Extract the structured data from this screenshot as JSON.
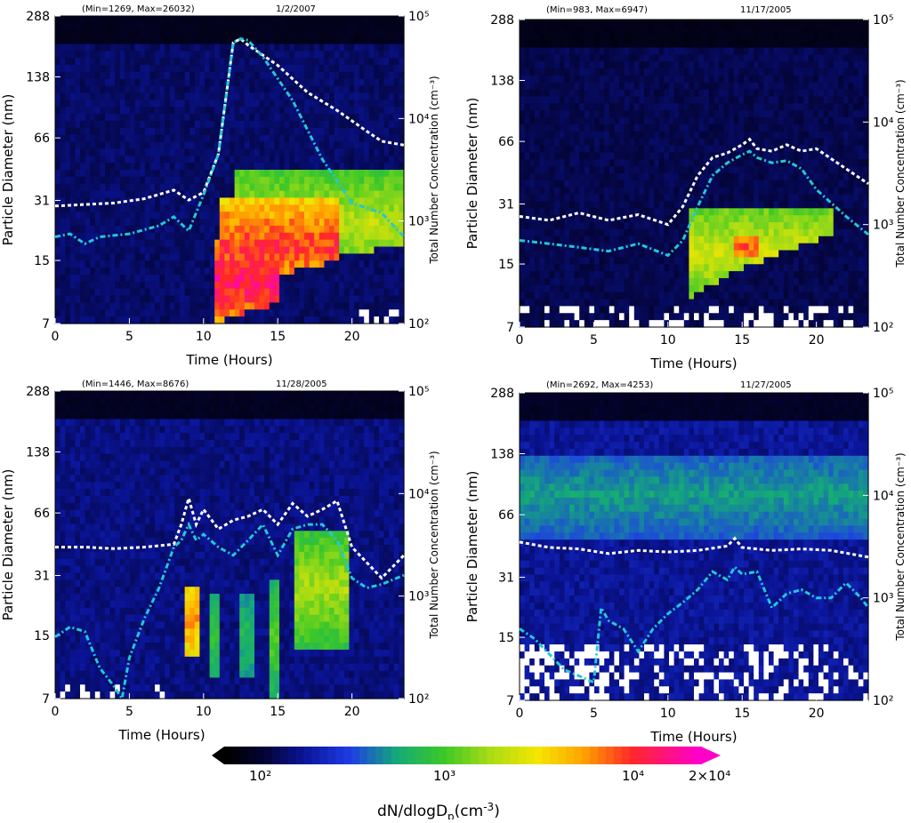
{
  "figure": {
    "colorbar": {
      "ticks": [
        "10²",
        "10³",
        "10⁴",
        "2×10⁴"
      ],
      "label_main": "dN/dlogD",
      "label_sub": "p",
      "label_units": "(cm",
      "label_units_sup": "-3",
      "label_units_close": ")"
    }
  },
  "chart_data": [
    {
      "type": "heatmap",
      "header_stats": "(Min=1269, Max=26032)",
      "date": "1/2/2007",
      "xlabel": "Time (Hours)",
      "ylabel": "Particle Diameter (nm)",
      "ylabel_right": "Total Number Concentration (cm⁻³)",
      "x_ticks": [
        "0",
        "5",
        "10",
        "15",
        "20"
      ],
      "y_ticks": [
        "7",
        "15",
        "31",
        "66",
        "138",
        "288"
      ],
      "y2_ticks": [
        "10²",
        "10³",
        "10⁴",
        "10⁵"
      ],
      "xlim": [
        0,
        23.5
      ],
      "ylim_nm": [
        7,
        288
      ],
      "y2lim": [
        100,
        100000
      ],
      "background_level": 0.12,
      "blobs": [
        {
          "t0": 10.6,
          "t1": 15.2,
          "d0": 7,
          "d1": 20,
          "dt": 5.5,
          "level": 0.95
        },
        {
          "t0": 11.2,
          "t1": 19.2,
          "d0": 10,
          "d1": 32,
          "dt": 5.5,
          "level": 0.88
        },
        {
          "t0": 12,
          "t1": 23.5,
          "d0": 12,
          "d1": 45,
          "dt": 8,
          "level": 0.6
        }
      ],
      "white_noise": {
        "t0": 19.5,
        "t1": 23.5,
        "dmax": 8.3
      },
      "total_concentration_white": {
        "x": [
          0,
          2,
          4,
          6,
          8,
          9,
          10,
          11,
          12,
          12.5,
          13,
          15,
          17,
          19,
          21,
          22,
          23.5
        ],
        "y": [
          1400,
          1450,
          1500,
          1650,
          2000,
          1600,
          1900,
          4500,
          55000,
          60000,
          52000,
          33000,
          18000,
          12000,
          7500,
          6000,
          5500
        ]
      },
      "total_concentration_cyan": {
        "x": [
          0,
          1,
          2,
          3,
          5,
          7,
          8,
          9,
          10,
          11,
          12,
          12.5,
          13,
          14,
          16,
          18,
          20,
          22,
          23.5
        ],
        "y": [
          700,
          750,
          600,
          700,
          750,
          900,
          1100,
          800,
          1800,
          4500,
          55000,
          60000,
          58000,
          40000,
          15000,
          4000,
          1500,
          1200,
          700
        ]
      }
    },
    {
      "type": "heatmap",
      "header_stats": "(Min=983, Max=6947)",
      "date": "11/17/2005",
      "xlabel": "Time (Hours)",
      "ylabel": "Particle Diameter (nm)",
      "ylabel_right": "Total Number Concentration (cm⁻³)",
      "x_ticks": [
        "0",
        "5",
        "10",
        "15",
        "20"
      ],
      "y_ticks": [
        "7",
        "15",
        "31",
        "66",
        "138",
        "288"
      ],
      "y2_ticks": [
        "10²",
        "10³",
        "10⁴",
        "10⁵"
      ],
      "xlim": [
        0,
        23.5
      ],
      "ylim_nm": [
        7,
        288
      ],
      "y2lim": [
        100,
        100000
      ],
      "background_level": 0.1,
      "blobs": [
        {
          "t0": 11.5,
          "t1": 21,
          "d0": 10,
          "d1": 30,
          "dt": 3,
          "level": 0.62
        },
        {
          "t0": 14.5,
          "t1": 16,
          "d0": 16,
          "d1": 21,
          "dt": 0,
          "level": 0.85
        }
      ],
      "white_noise": {
        "t0": 0,
        "t1": 23.5,
        "dmax": 8.8
      },
      "total_concentration_white": {
        "x": [
          0,
          2,
          4,
          6,
          8,
          10,
          11,
          12,
          13,
          14,
          15,
          15.5,
          16,
          17,
          18,
          19,
          20,
          22,
          23.5
        ],
        "y": [
          1200,
          1100,
          1300,
          1100,
          1250,
          1000,
          1500,
          3000,
          4500,
          5000,
          6000,
          6800,
          5500,
          5200,
          6000,
          5200,
          5500,
          3500,
          2500
        ]
      },
      "total_concentration_cyan": {
        "x": [
          0,
          2,
          4,
          6,
          8,
          10,
          11,
          12,
          13,
          14,
          15,
          15.5,
          16,
          17,
          18,
          19,
          20,
          22,
          23.5
        ],
        "y": [
          700,
          650,
          600,
          550,
          650,
          500,
          700,
          1500,
          3000,
          4000,
          4800,
          5200,
          4500,
          4000,
          4200,
          3500,
          2200,
          1200,
          800
        ]
      }
    },
    {
      "type": "heatmap",
      "header_stats": "(Min=1446, Max=8676)",
      "date": "11/28/2005",
      "xlabel": "Time (Hours)",
      "ylabel": "Particle Diameter (nm)",
      "ylabel_right": "Total Number Concentration (cm⁻³)",
      "x_ticks": [
        "0",
        "5",
        "10",
        "15",
        "20"
      ],
      "y_ticks": [
        "7",
        "15",
        "31",
        "66",
        "138",
        "288"
      ],
      "y2_ticks": [
        "10²",
        "10³",
        "10⁴",
        "10⁵"
      ],
      "xlim": [
        0,
        23.5
      ],
      "ylim_nm": [
        7,
        288
      ],
      "y2lim": [
        100,
        100000
      ],
      "background_level": 0.14,
      "blobs": [
        {
          "t0": 8.6,
          "t1": 9.9,
          "d0": 12,
          "d1": 28,
          "dt": 0,
          "level": 0.8
        },
        {
          "t0": 10.3,
          "t1": 11.2,
          "d0": 9,
          "d1": 25,
          "dt": 0,
          "level": 0.45
        },
        {
          "t0": 12.5,
          "t1": 13.3,
          "d0": 9,
          "d1": 25,
          "dt": 0,
          "level": 0.42
        },
        {
          "t0": 14.4,
          "t1": 15.1,
          "d0": 7,
          "d1": 30,
          "dt": 0,
          "level": 0.5
        },
        {
          "t0": 16,
          "t1": 19.8,
          "d0": 13,
          "d1": 55,
          "dt": 0,
          "level": 0.58
        }
      ],
      "white_noise": {
        "t0": 0,
        "t1": 7.5,
        "dmax": 8.6
      },
      "total_concentration_white": {
        "x": [
          0,
          2,
          4,
          6,
          8,
          8.5,
          9,
          9.5,
          10,
          11,
          12,
          13,
          14,
          15,
          16,
          17,
          18,
          19,
          20,
          22,
          23.5
        ],
        "y": [
          3000,
          3000,
          2900,
          3000,
          3200,
          5000,
          9000,
          5000,
          7000,
          4500,
          5500,
          6000,
          7000,
          5000,
          8000,
          6000,
          7000,
          8500,
          3000,
          1500,
          2500
        ]
      },
      "total_concentration_cyan": {
        "x": [
          0,
          1,
          2,
          3,
          4,
          4.5,
          5,
          6,
          7,
          8,
          8.5,
          9,
          9.5,
          10,
          11,
          12,
          13,
          14,
          15,
          16,
          17,
          18,
          19,
          20,
          21,
          22,
          23.5
        ],
        "y": [
          400,
          500,
          450,
          200,
          130,
          100,
          250,
          600,
          1200,
          3000,
          3500,
          5000,
          3500,
          4000,
          3000,
          2500,
          3500,
          5000,
          2500,
          4500,
          5000,
          5000,
          3500,
          1500,
          1200,
          1300,
          1600
        ]
      }
    },
    {
      "type": "heatmap",
      "header_stats": "(Min=2692, Max=4253)",
      "date": "11/27/2005",
      "xlabel": "Time (Hours)",
      "ylabel": "Particle Diameter (nm)",
      "ylabel_right": "Total Number Concentration (cm⁻³)",
      "x_ticks": [
        "0",
        "5",
        "10",
        "15",
        "20"
      ],
      "y_ticks": [
        "7",
        "15",
        "31",
        "66",
        "138",
        "288"
      ],
      "y2_ticks": [
        "10²",
        "10³",
        "10⁴",
        "10⁵"
      ],
      "xlim": [
        0,
        23.5
      ],
      "ylim_nm": [
        7,
        288
      ],
      "y2lim": [
        100,
        100000
      ],
      "background_level": 0.16,
      "blobs": [
        {
          "t0": 0,
          "t1": 23.5,
          "d0": 50,
          "d1": 140,
          "dt": 0,
          "level": 0.36
        }
      ],
      "white_noise": {
        "t0": 0,
        "t1": 23.5,
        "dmax": 14,
        "dense_until": 6
      },
      "total_concentration_white": {
        "x": [
          0,
          2,
          4,
          6,
          8,
          10,
          12,
          14,
          14.5,
          15,
          17,
          19,
          21,
          23.5
        ],
        "y": [
          3500,
          3100,
          3000,
          2700,
          2900,
          2800,
          2900,
          3200,
          3800,
          3100,
          2900,
          3000,
          2900,
          2500
        ]
      },
      "total_concentration_cyan": {
        "x": [
          0,
          1,
          3,
          5,
          5.5,
          6,
          7,
          8,
          9,
          10,
          11,
          12,
          13,
          14,
          14.5,
          15,
          16,
          17,
          18,
          19,
          20,
          21,
          22,
          23,
          23.5
        ],
        "y": [
          500,
          400,
          200,
          150,
          800,
          600,
          500,
          300,
          500,
          700,
          900,
          1200,
          1800,
          1500,
          2000,
          1700,
          1800,
          800,
          1100,
          1200,
          1000,
          1000,
          1400,
          1000,
          800
        ]
      }
    }
  ]
}
